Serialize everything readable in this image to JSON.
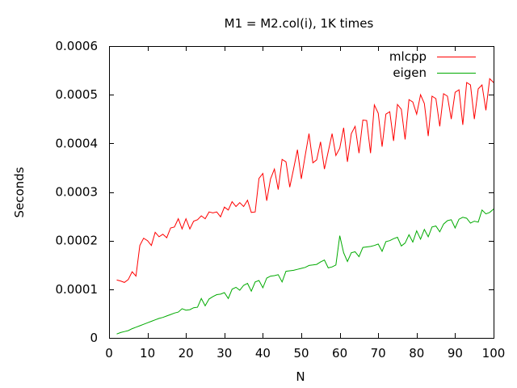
{
  "chart_data": {
    "type": "line",
    "title": "M1 = M2.col(i), 1K times",
    "xlabel": "N",
    "ylabel": "Seconds",
    "xlim": [
      0,
      100
    ],
    "ylim": [
      0,
      0.0006
    ],
    "x_ticks": [
      0,
      10,
      20,
      30,
      40,
      50,
      60,
      70,
      80,
      90,
      100
    ],
    "x_tick_labels": [
      "0",
      "10",
      "20",
      "30",
      "40",
      "50",
      "60",
      "70",
      "80",
      "90",
      "100"
    ],
    "y_ticks": [
      0,
      0.0001,
      0.0002,
      0.0003,
      0.0004,
      0.0005,
      0.0006
    ],
    "y_tick_labels": [
      "0",
      "0.0001",
      "0.0002",
      "0.0003",
      "0.0004",
      "0.0005",
      "0.0006"
    ],
    "grid": false,
    "legend_position": "top-right",
    "x": [
      2,
      3,
      4,
      5,
      6,
      7,
      8,
      9,
      10,
      11,
      12,
      13,
      14,
      15,
      16,
      17,
      18,
      19,
      20,
      21,
      22,
      23,
      24,
      25,
      26,
      27,
      28,
      29,
      30,
      31,
      32,
      33,
      34,
      35,
      36,
      37,
      38,
      39,
      40,
      41,
      42,
      43,
      44,
      45,
      46,
      47,
      48,
      49,
      50,
      51,
      52,
      53,
      54,
      55,
      56,
      57,
      58,
      59,
      60,
      61,
      62,
      63,
      64,
      65,
      66,
      67,
      68,
      69,
      70,
      71,
      72,
      73,
      74,
      75,
      76,
      77,
      78,
      79,
      80,
      81,
      82,
      83,
      84,
      85,
      86,
      87,
      88,
      89,
      90,
      91,
      92,
      93,
      94,
      95,
      96,
      97,
      98,
      99,
      100
    ],
    "series": [
      {
        "name": "mlcpp",
        "color": "#ff0000",
        "values": [
          0.000119,
          0.000117,
          0.000114,
          0.00012,
          0.000136,
          0.000127,
          0.00019,
          0.000205,
          0.0002,
          0.00019,
          0.000217,
          0.000208,
          0.000213,
          0.000206,
          0.000226,
          0.000228,
          0.000245,
          0.000224,
          0.000245,
          0.000224,
          0.00024,
          0.000243,
          0.000251,
          0.000245,
          0.000259,
          0.000257,
          0.000259,
          0.000249,
          0.000269,
          0.000263,
          0.00028,
          0.00027,
          0.000278,
          0.00027,
          0.000283,
          0.000258,
          0.000259,
          0.000328,
          0.000338,
          0.000282,
          0.000327,
          0.000347,
          0.000305,
          0.000367,
          0.000362,
          0.00031,
          0.000348,
          0.000387,
          0.000327,
          0.000375,
          0.00042,
          0.00036,
          0.000366,
          0.000403,
          0.000347,
          0.000383,
          0.00042,
          0.000375,
          0.00039,
          0.000432,
          0.000362,
          0.00042,
          0.000435,
          0.00038,
          0.000448,
          0.000447,
          0.00038,
          0.000479,
          0.000462,
          0.000393,
          0.00046,
          0.000465,
          0.000405,
          0.00048,
          0.00047,
          0.000408,
          0.00049,
          0.000485,
          0.00046,
          0.0005,
          0.000482,
          0.000415,
          0.000497,
          0.000492,
          0.000435,
          0.000502,
          0.000497,
          0.00045,
          0.000505,
          0.00051,
          0.000438,
          0.000525,
          0.00052,
          0.00045,
          0.000512,
          0.00052,
          0.000468,
          0.000533,
          0.000525
        ]
      },
      {
        "name": "eigen",
        "color": "#00aa00",
        "values": [
          8e-06,
          1.1e-05,
          1.3e-05,
          1.5e-05,
          1.9e-05,
          2.2e-05,
          2.5e-05,
          2.8e-05,
          3.1e-05,
          3.4e-05,
          3.7e-05,
          4e-05,
          4.2e-05,
          4.5e-05,
          4.8e-05,
          5.1e-05,
          5.3e-05,
          6e-05,
          5.7e-05,
          5.8e-05,
          6.2e-05,
          6.3e-05,
          8.1e-05,
          6.6e-05,
          8e-05,
          8.5e-05,
          8.9e-05,
          9e-05,
          9.3e-05,
          8.1e-05,
          0.0001,
          0.000104,
          9.8e-05,
          0.000108,
          0.000112,
          9.6e-05,
          0.000115,
          0.000118,
          0.000103,
          0.000123,
          0.000127,
          0.000128,
          0.00013,
          0.000115,
          0.000137,
          0.000138,
          0.000139,
          0.000141,
          0.000143,
          0.000145,
          0.000149,
          0.00015,
          0.000151,
          0.000156,
          0.00016,
          0.000144,
          0.000146,
          0.00015,
          0.00021,
          0.000175,
          0.000157,
          0.000175,
          0.000177,
          0.000167,
          0.000186,
          0.000187,
          0.000188,
          0.00019,
          0.000193,
          0.000178,
          0.000198,
          0.0002,
          0.000204,
          0.000207,
          0.000189,
          0.000195,
          0.000212,
          0.000197,
          0.00022,
          0.000203,
          0.000223,
          0.000208,
          0.000228,
          0.00023,
          0.000218,
          0.000234,
          0.000241,
          0.000243,
          0.000226,
          0.000244,
          0.000248,
          0.000246,
          0.000236,
          0.00024,
          0.000238,
          0.000263,
          0.000255,
          0.000258,
          0.000265
        ]
      }
    ]
  }
}
